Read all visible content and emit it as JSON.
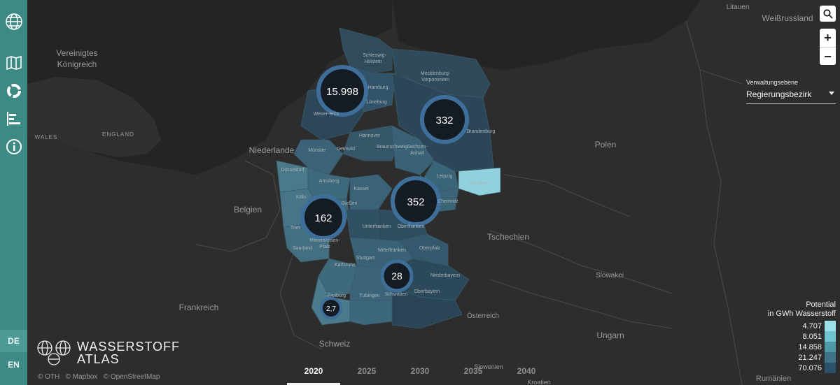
{
  "sidebar": {
    "icons": [
      "globe-logo-icon",
      "map-icon",
      "donut-chart-icon",
      "bar-chart-icon",
      "info-icon"
    ]
  },
  "languages": [
    "DE",
    "EN"
  ],
  "active_language": "DE",
  "controls": {
    "search": "search-icon",
    "zoom_in": "+",
    "zoom_out": "−"
  },
  "admin_level": {
    "label": "Verwaltungsebene",
    "value": "Regierungsbezirk"
  },
  "legend": {
    "title1": "Potential",
    "title2": "in GWh Wasserstoff",
    "items": [
      {
        "value": "4.707",
        "color": "#9be0e8"
      },
      {
        "value": "8.051",
        "color": "#6fc6d3"
      },
      {
        "value": "14.858",
        "color": "#4f97a6"
      },
      {
        "value": "21.247",
        "color": "#3e7388"
      },
      {
        "value": "70.076",
        "color": "#2b5268"
      }
    ]
  },
  "brand": {
    "line1": "WASSERSTOFF",
    "line2": "ATLAS"
  },
  "attribution": [
    "© OTH",
    "© Mapbox",
    "© OpenStreetMap"
  ],
  "years": [
    "2020",
    "2025",
    "2030",
    "2035",
    "2040"
  ],
  "active_year": "2020",
  "clusters": [
    {
      "label": "15.998"
    },
    {
      "label": "332"
    },
    {
      "label": "352"
    },
    {
      "label": "162"
    },
    {
      "label": "28"
    },
    {
      "label": "2,7"
    }
  ],
  "countries": [
    "Vereinigtes",
    "Königreich",
    "WALES",
    "ENGLAND",
    "Niederlande",
    "Belgien",
    "Frankreich",
    "Schweiz",
    "Polen",
    "Tschechien",
    "Slowakei",
    "Österreich",
    "Ungarn",
    "Litauen",
    "Weißrussland",
    "Slowenien",
    "Kroatien",
    "Rumänien"
  ],
  "regions": [
    "Schleswig-",
    "Holstein",
    "Mecklenburg-",
    "Vorpommern",
    "Hamburg",
    "Lüneburg",
    "Weser-Ems",
    "Brandenburg",
    "Hannover",
    "Münster",
    "Detmold",
    "Braunschweig",
    "Sachsen-",
    "Anhalt",
    "Düsseldorf",
    "Arnsberg",
    "Leipzig",
    "Dresden",
    "Kassel",
    "Köln",
    "Gießen",
    "Chemnitz",
    "Trier",
    "Unterfranken",
    "Oberfranken",
    "Rheinhessen-",
    "Pfalz",
    "Saarland",
    "Mittelfranken",
    "Oberpfalz",
    "Stuttgart",
    "Karlsruhe",
    "Niederbayern",
    "Freiburg",
    "Tübingen",
    "Schwaben",
    "Oberbayern"
  ]
}
